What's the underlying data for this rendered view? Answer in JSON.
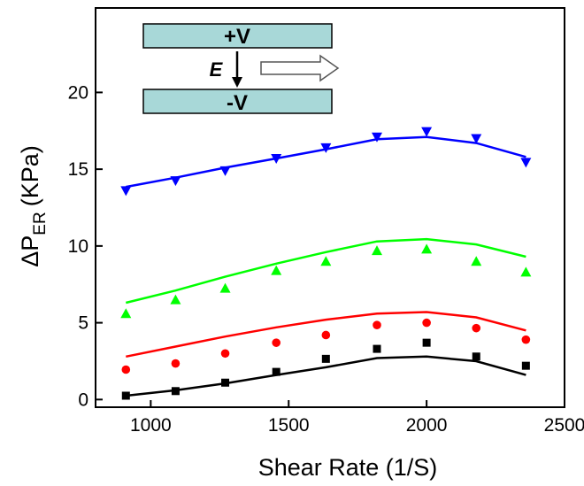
{
  "chart_data": {
    "type": "line",
    "xlabel": "Shear Rate (1/S)",
    "ylabel_main": "ΔP",
    "ylabel_sub": "ER",
    "ylabel_unit": "(KPa)",
    "xlim": [
      800,
      2500
    ],
    "ylim": [
      -0.5,
      25.5
    ],
    "xticks": [
      1000,
      1500,
      2000,
      2500
    ],
    "yticks": [
      0,
      5,
      10,
      15,
      20
    ],
    "grid": false,
    "x": [
      910,
      1090,
      1270,
      1455,
      1635,
      1820,
      2000,
      2180,
      2360
    ],
    "series": [
      {
        "marker": "square",
        "color": "#000000",
        "points": [
          0.25,
          0.55,
          1.1,
          1.8,
          2.65,
          3.3,
          3.7,
          2.8,
          2.2
        ],
        "line": [
          0.25,
          0.6,
          1.05,
          1.6,
          2.1,
          2.7,
          2.8,
          2.5,
          1.6
        ]
      },
      {
        "marker": "circle",
        "color": "#ff0000",
        "points": [
          1.95,
          2.35,
          3.0,
          3.7,
          4.2,
          4.85,
          5.0,
          4.65,
          3.9
        ],
        "line": [
          2.8,
          3.45,
          4.1,
          4.7,
          5.2,
          5.6,
          5.7,
          5.35,
          4.5
        ]
      },
      {
        "marker": "triangle-up",
        "color": "#00ff00",
        "points": [
          5.6,
          6.5,
          7.25,
          8.4,
          9.0,
          9.7,
          9.8,
          9.0,
          8.3
        ],
        "line": [
          6.3,
          7.1,
          8.0,
          8.85,
          9.6,
          10.3,
          10.45,
          10.1,
          9.3
        ]
      },
      {
        "marker": "triangle-down",
        "color": "#0000ff",
        "points": [
          13.6,
          14.25,
          14.9,
          15.7,
          16.4,
          17.1,
          17.45,
          17.0,
          15.45
        ],
        "line": [
          13.85,
          14.45,
          15.1,
          15.7,
          16.3,
          16.95,
          17.1,
          16.7,
          15.8
        ]
      }
    ]
  },
  "inset": {
    "top_label": "+V",
    "bottom_label": "-V",
    "field_label": "E",
    "plate_color": "#a8d8d8"
  }
}
